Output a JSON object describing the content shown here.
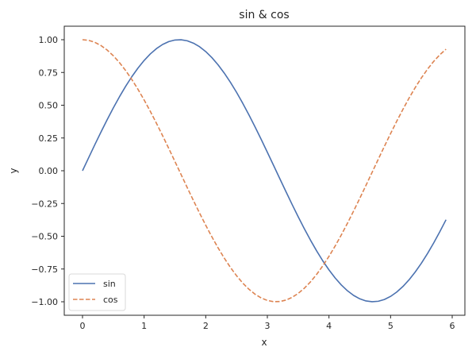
{
  "chart_data": {
    "type": "line",
    "title": "sin & cos",
    "xlabel": "x",
    "ylabel": "y",
    "xlim": [
      -0.295,
      6.195
    ],
    "ylim": [
      -1.1,
      1.1
    ],
    "grid": false,
    "legend_position": "lower left",
    "x_ticks": [
      0,
      1,
      2,
      3,
      4,
      5,
      6
    ],
    "x_tick_labels": [
      "0",
      "1",
      "2",
      "3",
      "4",
      "5",
      "6"
    ],
    "y_ticks": [
      1.0,
      0.75,
      0.5,
      0.25,
      0.0,
      -0.25,
      -0.5,
      -0.75,
      -1.0
    ],
    "y_tick_labels": [
      "1.00",
      "0.75",
      "0.50",
      "0.25",
      "0.00",
      "−0.25",
      "−0.50",
      "−0.75",
      "−1.00"
    ],
    "x": [
      0.0,
      0.1,
      0.2,
      0.3,
      0.4,
      0.5,
      0.6,
      0.7,
      0.8,
      0.9,
      1.0,
      1.1,
      1.2,
      1.3,
      1.4,
      1.5,
      1.6,
      1.7,
      1.8,
      1.9,
      2.0,
      2.1,
      2.2,
      2.3,
      2.4,
      2.5,
      2.6,
      2.7,
      2.8,
      2.9,
      3.0,
      3.1,
      3.2,
      3.3,
      3.4,
      3.5,
      3.6,
      3.7,
      3.8,
      3.9,
      4.0,
      4.1,
      4.2,
      4.3,
      4.4,
      4.5,
      4.6,
      4.7,
      4.8,
      4.9,
      5.0,
      5.1,
      5.2,
      5.3,
      5.4,
      5.5,
      5.6,
      5.7,
      5.8,
      5.9
    ],
    "series": [
      {
        "name": "sin",
        "color": "#4c72b0",
        "linestyle": "solid",
        "values": [
          0.0,
          0.0998,
          0.1987,
          0.2955,
          0.3894,
          0.4794,
          0.5646,
          0.6442,
          0.7174,
          0.7833,
          0.8415,
          0.8912,
          0.932,
          0.9636,
          0.9854,
          0.9975,
          0.9996,
          0.9917,
          0.9738,
          0.9463,
          0.9093,
          0.8632,
          0.8085,
          0.7457,
          0.6755,
          0.5985,
          0.5155,
          0.4274,
          0.335,
          0.2392,
          0.1411,
          0.0416,
          -0.0584,
          -0.1577,
          -0.2555,
          -0.3508,
          -0.4425,
          -0.5298,
          -0.6119,
          -0.6878,
          -0.7568,
          -0.8183,
          -0.8716,
          -0.9162,
          -0.9516,
          -0.9775,
          -0.9937,
          -0.9999,
          -0.9962,
          -0.9825,
          -0.9589,
          -0.9258,
          -0.8835,
          -0.8323,
          -0.7728,
          -0.7055,
          -0.6313,
          -0.5507,
          -0.4646,
          -0.3739
        ]
      },
      {
        "name": "cos",
        "color": "#dd8452",
        "linestyle": "dashed",
        "values": [
          1.0,
          0.995,
          0.9801,
          0.9553,
          0.9211,
          0.8776,
          0.8253,
          0.7648,
          0.6967,
          0.6216,
          0.5403,
          0.4536,
          0.3624,
          0.2675,
          0.17,
          0.0707,
          -0.0292,
          -0.1288,
          -0.2272,
          -0.3233,
          -0.4161,
          -0.5048,
          -0.5885,
          -0.6663,
          -0.7374,
          -0.8011,
          -0.8569,
          -0.9041,
          -0.9422,
          -0.971,
          -0.99,
          -0.9991,
          -0.9983,
          -0.9875,
          -0.9668,
          -0.9365,
          -0.8968,
          -0.8481,
          -0.791,
          -0.7259,
          -0.6536,
          -0.5748,
          -0.4903,
          -0.4008,
          -0.3073,
          -0.2108,
          -0.1122,
          -0.0124,
          0.0875,
          0.1865,
          0.2837,
          0.378,
          0.4685,
          0.5544,
          0.6347,
          0.7087,
          0.7756,
          0.8347,
          0.8855,
          0.9275
        ]
      }
    ]
  },
  "legend": {
    "items": [
      {
        "label": "sin"
      },
      {
        "label": "cos"
      }
    ]
  }
}
